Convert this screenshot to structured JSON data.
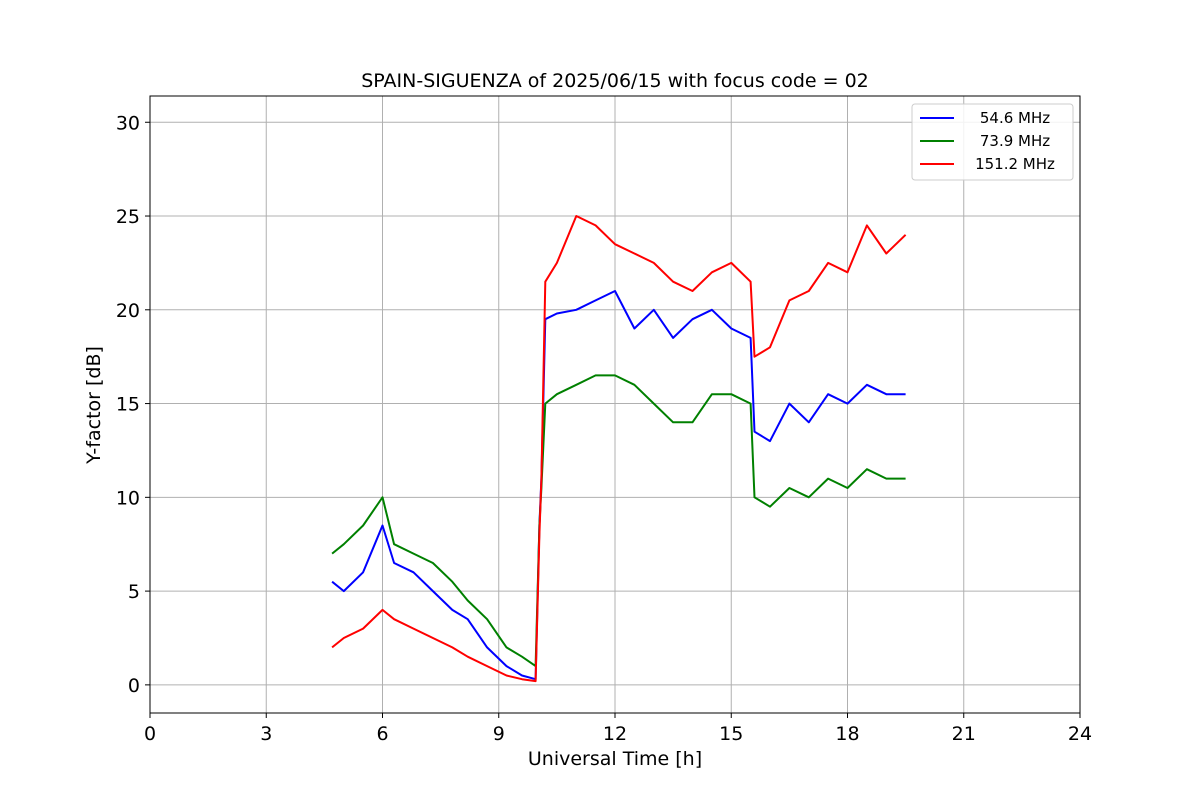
{
  "chart_data": {
    "type": "line",
    "title": "SPAIN-SIGUENZA of 2025/06/15 with focus code = 02",
    "xlabel": "Universal Time [h]",
    "ylabel": "Y-factor [dB]",
    "xlim": [
      0,
      24
    ],
    "ylim": [
      -1.5,
      31.4
    ],
    "xticks": [
      0,
      3,
      6,
      9,
      12,
      15,
      18,
      21,
      24
    ],
    "yticks": [
      0,
      5,
      10,
      15,
      20,
      25,
      30
    ],
    "grid": true,
    "legend_position": "upper right",
    "series": [
      {
        "name": "  54.6 MHz",
        "color": "#0000ff",
        "x": [
          4.7,
          5.0,
          5.5,
          6.0,
          6.3,
          6.8,
          7.3,
          7.8,
          8.2,
          8.7,
          9.2,
          9.6,
          9.95,
          10.05,
          10.1,
          10.2,
          10.5,
          11.0,
          11.5,
          12.0,
          12.5,
          13.0,
          13.5,
          14.0,
          14.5,
          15.0,
          15.5,
          15.6,
          16.0,
          16.5,
          17.0,
          17.5,
          18.0,
          18.5,
          19.0,
          19.5
        ],
        "y": [
          5.5,
          5.0,
          6.0,
          8.5,
          6.5,
          6.0,
          5.0,
          4.0,
          3.5,
          2.0,
          1.0,
          0.5,
          0.3,
          8.5,
          11.0,
          19.5,
          19.8,
          20.0,
          20.5,
          21.0,
          19.0,
          20.0,
          18.5,
          19.5,
          20.0,
          19.0,
          18.5,
          13.5,
          13.0,
          15.0,
          14.0,
          15.5,
          15.0,
          16.0,
          15.5,
          15.5
        ]
      },
      {
        "name": "  73.9 MHz",
        "color": "#008000",
        "x": [
          4.7,
          5.0,
          5.5,
          6.0,
          6.3,
          6.8,
          7.3,
          7.8,
          8.2,
          8.7,
          9.2,
          9.6,
          9.95,
          10.05,
          10.1,
          10.2,
          10.5,
          11.0,
          11.5,
          12.0,
          12.5,
          13.0,
          13.5,
          14.0,
          14.5,
          15.0,
          15.5,
          15.6,
          16.0,
          16.5,
          17.0,
          17.5,
          18.0,
          18.5,
          19.0,
          19.5
        ],
        "y": [
          7.0,
          7.5,
          8.5,
          10.0,
          7.5,
          7.0,
          6.5,
          5.5,
          4.5,
          3.5,
          2.0,
          1.5,
          1.0,
          8.5,
          10.5,
          15.0,
          15.5,
          16.0,
          16.5,
          16.5,
          16.0,
          15.0,
          14.0,
          14.0,
          15.5,
          15.5,
          15.0,
          10.0,
          9.5,
          10.5,
          10.0,
          11.0,
          10.5,
          11.5,
          11.0,
          11.0
        ]
      },
      {
        "name": "151.2 MHz",
        "color": "#ff0000",
        "x": [
          4.7,
          5.0,
          5.5,
          6.0,
          6.3,
          6.8,
          7.3,
          7.8,
          8.2,
          8.7,
          9.2,
          9.6,
          9.95,
          10.05,
          10.1,
          10.2,
          10.5,
          11.0,
          11.5,
          12.0,
          12.5,
          13.0,
          13.5,
          14.0,
          14.5,
          15.0,
          15.5,
          15.6,
          16.0,
          16.5,
          17.0,
          17.5,
          18.0,
          18.5,
          19.0,
          19.5
        ],
        "y": [
          2.0,
          2.5,
          3.0,
          4.0,
          3.5,
          3.0,
          2.5,
          2.0,
          1.5,
          1.0,
          0.5,
          0.3,
          0.2,
          8.0,
          11.0,
          21.5,
          22.5,
          25.0,
          24.5,
          23.5,
          23.0,
          22.5,
          21.5,
          21.0,
          22.0,
          22.5,
          21.5,
          17.5,
          18.0,
          20.5,
          21.0,
          22.5,
          22.0,
          24.5,
          23.0,
          24.0
        ]
      }
    ]
  }
}
